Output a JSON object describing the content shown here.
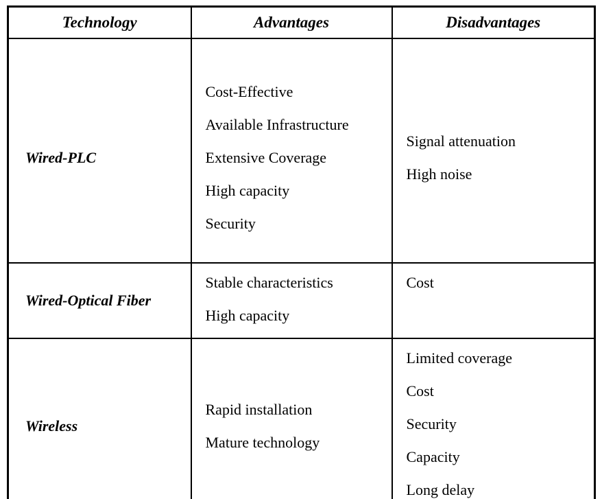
{
  "table": {
    "headers": [
      "Technology",
      "Advantages",
      "Disadvantages"
    ],
    "rows": [
      {
        "technology": "Wired-PLC",
        "advantages": [
          "Cost-Effective",
          "Available Infrastructure",
          "Extensive Coverage",
          "High capacity",
          "Security"
        ],
        "disadvantages": [
          "Signal attenuation",
          "High noise"
        ]
      },
      {
        "technology": "Wired-Optical Fiber",
        "advantages": [
          "Stable characteristics",
          "High capacity"
        ],
        "disadvantages": [
          "Cost"
        ]
      },
      {
        "technology": "Wireless",
        "advantages": [
          "Rapid installation",
          "Mature technology"
        ],
        "disadvantages": [
          "Limited coverage",
          "Cost",
          "Security",
          "Capacity",
          "Long delay"
        ]
      }
    ]
  },
  "colors": {
    "border": "#000000",
    "text": "#000000",
    "background": "#ffffff"
  }
}
